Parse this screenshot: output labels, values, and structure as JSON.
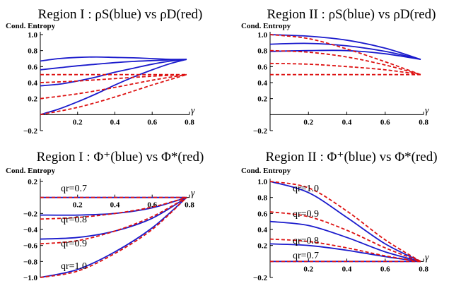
{
  "chart_data": [
    {
      "type": "line",
      "title": "Region I : ρS(blue) vs ρD(red)",
      "ylabel": "Cond. Entropy",
      "xlabel": "γ",
      "xlim": [
        0,
        0.785
      ],
      "ylim": [
        -0.2,
        1.0
      ],
      "xticks": [
        "0.2",
        "0.4",
        "0.6",
        "0.8"
      ],
      "yticks": [
        "−0.2",
        "0.2",
        "0.4",
        "0.6",
        "0.8",
        "1.0"
      ],
      "annotations": [],
      "series": [
        {
          "color": "blue",
          "x": [
            0,
            0.1,
            0.2,
            0.3,
            0.4,
            0.5,
            0.6,
            0.7,
            0.785
          ],
          "y": [
            0.67,
            0.7,
            0.715,
            0.72,
            0.715,
            0.71,
            0.7,
            0.69,
            0.69
          ]
        },
        {
          "color": "blue",
          "x": [
            0,
            0.1,
            0.2,
            0.3,
            0.4,
            0.5,
            0.6,
            0.7,
            0.785
          ],
          "y": [
            0.56,
            0.585,
            0.61,
            0.63,
            0.65,
            0.665,
            0.675,
            0.685,
            0.69
          ]
        },
        {
          "color": "blue",
          "x": [
            0,
            0.1,
            0.2,
            0.3,
            0.4,
            0.5,
            0.6,
            0.7,
            0.785
          ],
          "y": [
            0.36,
            0.38,
            0.42,
            0.47,
            0.53,
            0.58,
            0.63,
            0.67,
            0.69
          ]
        },
        {
          "color": "blue",
          "x": [
            0,
            0.1,
            0.2,
            0.3,
            0.4,
            0.5,
            0.6,
            0.7,
            0.785
          ],
          "y": [
            0.0,
            0.07,
            0.16,
            0.26,
            0.37,
            0.47,
            0.56,
            0.64,
            0.69
          ]
        },
        {
          "color": "red",
          "x": [
            0,
            0.2,
            0.4,
            0.6,
            0.785
          ],
          "y": [
            0.5,
            0.5,
            0.5,
            0.5,
            0.5
          ]
        },
        {
          "color": "red",
          "x": [
            0,
            0.2,
            0.4,
            0.6,
            0.785
          ],
          "y": [
            0.4,
            0.42,
            0.45,
            0.48,
            0.5
          ]
        },
        {
          "color": "red",
          "x": [
            0,
            0.2,
            0.4,
            0.6,
            0.785
          ],
          "y": [
            0.2,
            0.26,
            0.34,
            0.43,
            0.5
          ]
        },
        {
          "color": "red",
          "x": [
            0,
            0.2,
            0.4,
            0.6,
            0.785
          ],
          "y": [
            0.0,
            0.09,
            0.22,
            0.37,
            0.5
          ]
        }
      ]
    },
    {
      "type": "line",
      "title": "Region II : ρS(blue) vs ρD(red)",
      "ylabel": "Cond. Entropy",
      "xlabel": "γ",
      "xlim": [
        0,
        0.785
      ],
      "ylim": [
        -0.2,
        1.0
      ],
      "xticks": [
        "0.2",
        "0.4",
        "0.6",
        "0.8"
      ],
      "yticks": [
        "−0.2",
        "0.2",
        "0.4",
        "0.6",
        "0.8",
        "1.0"
      ],
      "annotations": [],
      "series": [
        {
          "color": "blue",
          "x": [
            0,
            0.2,
            0.4,
            0.6,
            0.785
          ],
          "y": [
            1.0,
            0.98,
            0.93,
            0.83,
            0.69
          ]
        },
        {
          "color": "blue",
          "x": [
            0,
            0.2,
            0.4,
            0.6,
            0.785
          ],
          "y": [
            0.88,
            0.89,
            0.86,
            0.79,
            0.69
          ]
        },
        {
          "color": "blue",
          "x": [
            0,
            0.2,
            0.4,
            0.6,
            0.785
          ],
          "y": [
            0.79,
            0.8,
            0.8,
            0.76,
            0.69
          ]
        },
        {
          "color": "red",
          "x": [
            0,
            0.2,
            0.4,
            0.6,
            0.785
          ],
          "y": [
            1.0,
            0.95,
            0.82,
            0.66,
            0.5
          ]
        },
        {
          "color": "red",
          "x": [
            0,
            0.2,
            0.4,
            0.6,
            0.785
          ],
          "y": [
            0.8,
            0.78,
            0.72,
            0.62,
            0.5
          ]
        },
        {
          "color": "red",
          "x": [
            0,
            0.2,
            0.4,
            0.6,
            0.785
          ],
          "y": [
            0.64,
            0.63,
            0.6,
            0.56,
            0.5
          ]
        },
        {
          "color": "red",
          "x": [
            0,
            0.2,
            0.4,
            0.6,
            0.785
          ],
          "y": [
            0.5,
            0.5,
            0.5,
            0.5,
            0.5
          ]
        }
      ]
    },
    {
      "type": "line",
      "title": "Region I : Φ⁺(blue) vs Φ*(red)",
      "ylabel": "Cond. Entropy",
      "xlabel": "γ",
      "xlim": [
        0,
        0.785
      ],
      "ylim": [
        -1.0,
        0.2
      ],
      "xticks": [
        "0.2",
        "0.4",
        "0.6",
        "0.8"
      ],
      "yticks": [
        "−1.0",
        "−0.8",
        "−0.6",
        "−0.4",
        "−0.2",
        "0.2"
      ],
      "annotations": [
        "qr=0.7",
        "qr=0.8",
        "qr=0.9",
        "qr=1.0"
      ],
      "series": [
        {
          "color": "blue",
          "x": [
            0,
            0.2,
            0.4,
            0.6,
            0.785
          ],
          "y": [
            0.0,
            0.0,
            0.0,
            0.0,
            0.0
          ]
        },
        {
          "color": "blue",
          "x": [
            0,
            0.2,
            0.4,
            0.6,
            0.785
          ],
          "y": [
            -0.22,
            -0.22,
            -0.2,
            -0.13,
            0.0
          ]
        },
        {
          "color": "blue",
          "x": [
            0,
            0.2,
            0.4,
            0.6,
            0.785
          ],
          "y": [
            -0.52,
            -0.5,
            -0.42,
            -0.26,
            0.0
          ]
        },
        {
          "color": "blue",
          "x": [
            0,
            0.2,
            0.4,
            0.6,
            0.785
          ],
          "y": [
            -1.0,
            -0.9,
            -0.68,
            -0.38,
            0.0
          ]
        },
        {
          "color": "red",
          "x": [
            0,
            0.2,
            0.4,
            0.6,
            0.785
          ],
          "y": [
            0.0,
            0.0,
            0.0,
            0.0,
            0.0
          ]
        },
        {
          "color": "red",
          "x": [
            0,
            0.2,
            0.4,
            0.6,
            0.785
          ],
          "y": [
            -0.27,
            -0.25,
            -0.2,
            -0.12,
            0.0
          ]
        },
        {
          "color": "red",
          "x": [
            0,
            0.2,
            0.4,
            0.6,
            0.785
          ],
          "y": [
            -0.58,
            -0.54,
            -0.42,
            -0.24,
            0.0
          ]
        },
        {
          "color": "red",
          "x": [
            0,
            0.2,
            0.4,
            0.6,
            0.785
          ],
          "y": [
            -1.0,
            -0.92,
            -0.7,
            -0.4,
            0.0
          ]
        }
      ]
    },
    {
      "type": "line",
      "title": "Region II : Φ⁺(blue) vs Φ*(red)",
      "ylabel": "Cond. Entropy",
      "xlabel": "γ",
      "xlim": [
        0,
        0.785
      ],
      "ylim": [
        -0.2,
        1.0
      ],
      "xticks": [
        "0.2",
        "0.4",
        "0.6",
        "0.8"
      ],
      "yticks": [
        "−0.2",
        "0.2",
        "0.4",
        "0.6",
        "0.8",
        "1.0"
      ],
      "annotations": [
        "qr=1.0",
        "qr=0.9",
        "qr=0.8",
        "qr=0.7"
      ],
      "series": [
        {
          "color": "blue",
          "x": [
            0,
            0.2,
            0.4,
            0.6,
            0.785
          ],
          "y": [
            1.0,
            0.86,
            0.55,
            0.22,
            0.0
          ]
        },
        {
          "color": "blue",
          "x": [
            0,
            0.2,
            0.4,
            0.6,
            0.785
          ],
          "y": [
            0.5,
            0.45,
            0.3,
            0.12,
            0.0
          ]
        },
        {
          "color": "blue",
          "x": [
            0,
            0.2,
            0.4,
            0.6,
            0.785
          ],
          "y": [
            0.22,
            0.2,
            0.14,
            0.06,
            0.0
          ]
        },
        {
          "color": "blue",
          "x": [
            0,
            0.2,
            0.4,
            0.6,
            0.785
          ],
          "y": [
            0.0,
            0.0,
            0.0,
            0.0,
            0.0
          ]
        },
        {
          "color": "red",
          "x": [
            0,
            0.2,
            0.4,
            0.6,
            0.785
          ],
          "y": [
            1.0,
            0.92,
            0.63,
            0.27,
            0.0
          ]
        },
        {
          "color": "red",
          "x": [
            0,
            0.2,
            0.4,
            0.6,
            0.785
          ],
          "y": [
            0.62,
            0.56,
            0.39,
            0.17,
            0.0
          ]
        },
        {
          "color": "red",
          "x": [
            0,
            0.2,
            0.4,
            0.6,
            0.785
          ],
          "y": [
            0.28,
            0.25,
            0.17,
            0.07,
            0.0
          ]
        },
        {
          "color": "red",
          "x": [
            0,
            0.2,
            0.4,
            0.6,
            0.785
          ],
          "y": [
            0.0,
            0.0,
            0.0,
            0.0,
            0.0
          ]
        }
      ]
    }
  ]
}
